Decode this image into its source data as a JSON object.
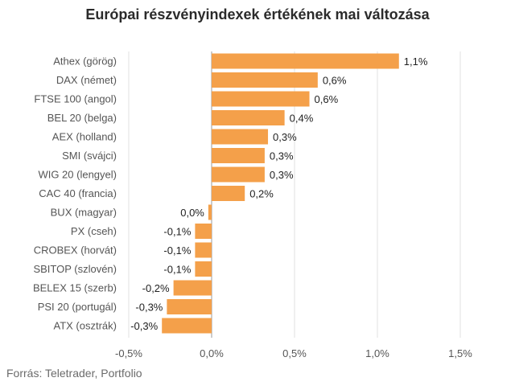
{
  "chart_data": {
    "type": "bar",
    "orientation": "horizontal",
    "title": "Európai részvényindexek értékének mai változása",
    "source": "Forrás: Teletrader, Portfolio",
    "bar_color": "#f4a04a",
    "categories": [
      "Athex (görög)",
      "DAX (német)",
      "FTSE 100 (angol)",
      "BEL 20 (belga)",
      "AEX (holland)",
      "SMI (svájci)",
      "WIG 20 (lengyel)",
      "CAC 40 (francia)",
      "BUX (magyar)",
      "PX (cseh)",
      "CROBEX (horvát)",
      "SBITOP (szlovén)",
      "BELEX 15 (szerb)",
      "PSI 20 (portugál)",
      "ATX (osztrák)"
    ],
    "values": [
      1.13,
      0.64,
      0.59,
      0.44,
      0.34,
      0.32,
      0.32,
      0.2,
      -0.02,
      -0.1,
      -0.1,
      -0.1,
      -0.23,
      -0.27,
      -0.3
    ],
    "value_labels": [
      "1,1%",
      "0,6%",
      "0,6%",
      "0,4%",
      "0,3%",
      "0,3%",
      "0,3%",
      "0,2%",
      "0,0%",
      "-0,1%",
      "-0,1%",
      "-0,1%",
      "-0,2%",
      "-0,3%",
      "-0,3%"
    ],
    "xlim": [
      -0.5,
      1.5
    ],
    "xticks": [
      -0.5,
      0.0,
      0.5,
      1.0,
      1.5
    ],
    "xtick_labels": [
      "-0,5%",
      "0,0%",
      "0,5%",
      "1,0%",
      "1,5%"
    ],
    "grid": true
  }
}
